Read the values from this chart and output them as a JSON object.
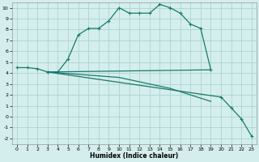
{
  "xlabel": "Humidex (Indice chaleur)",
  "bg_color": "#d4eeed",
  "grid_color": "#aad4d0",
  "line_color": "#1a7a6a",
  "xlim": [
    -0.5,
    23.5
  ],
  "ylim": [
    -2.5,
    10.5
  ],
  "xticks": [
    0,
    1,
    2,
    3,
    4,
    5,
    6,
    7,
    8,
    9,
    10,
    11,
    12,
    13,
    14,
    15,
    16,
    17,
    18,
    19,
    20,
    21,
    22,
    23
  ],
  "yticks": [
    -2,
    -1,
    0,
    1,
    2,
    3,
    4,
    5,
    6,
    7,
    8,
    9,
    10
  ],
  "curve1_x": [
    0,
    1,
    2,
    3,
    4,
    5,
    6,
    7,
    8,
    9,
    10,
    11,
    12,
    13,
    14,
    15,
    16,
    17,
    18,
    19
  ],
  "curve1_y": [
    4.5,
    4.5,
    4.4,
    4.1,
    4.1,
    5.3,
    7.5,
    8.1,
    8.1,
    8.8,
    10.0,
    9.5,
    9.5,
    9.5,
    10.3,
    10.0,
    9.5,
    8.5,
    8.1,
    4.3
  ],
  "curve2_x": [
    3,
    20,
    21,
    22,
    23
  ],
  "curve2_y": [
    4.1,
    1.8,
    0.8,
    -0.2,
    -1.8
  ],
  "curve3_x": [
    3,
    19
  ],
  "curve3_y": [
    4.1,
    4.3
  ],
  "curve4_x": [
    3,
    10,
    11,
    12,
    13,
    14,
    15,
    16,
    17,
    18,
    19
  ],
  "curve4_y": [
    4.1,
    3.6,
    3.4,
    3.2,
    3.0,
    2.8,
    2.6,
    2.3,
    2.0,
    1.7,
    1.4
  ]
}
